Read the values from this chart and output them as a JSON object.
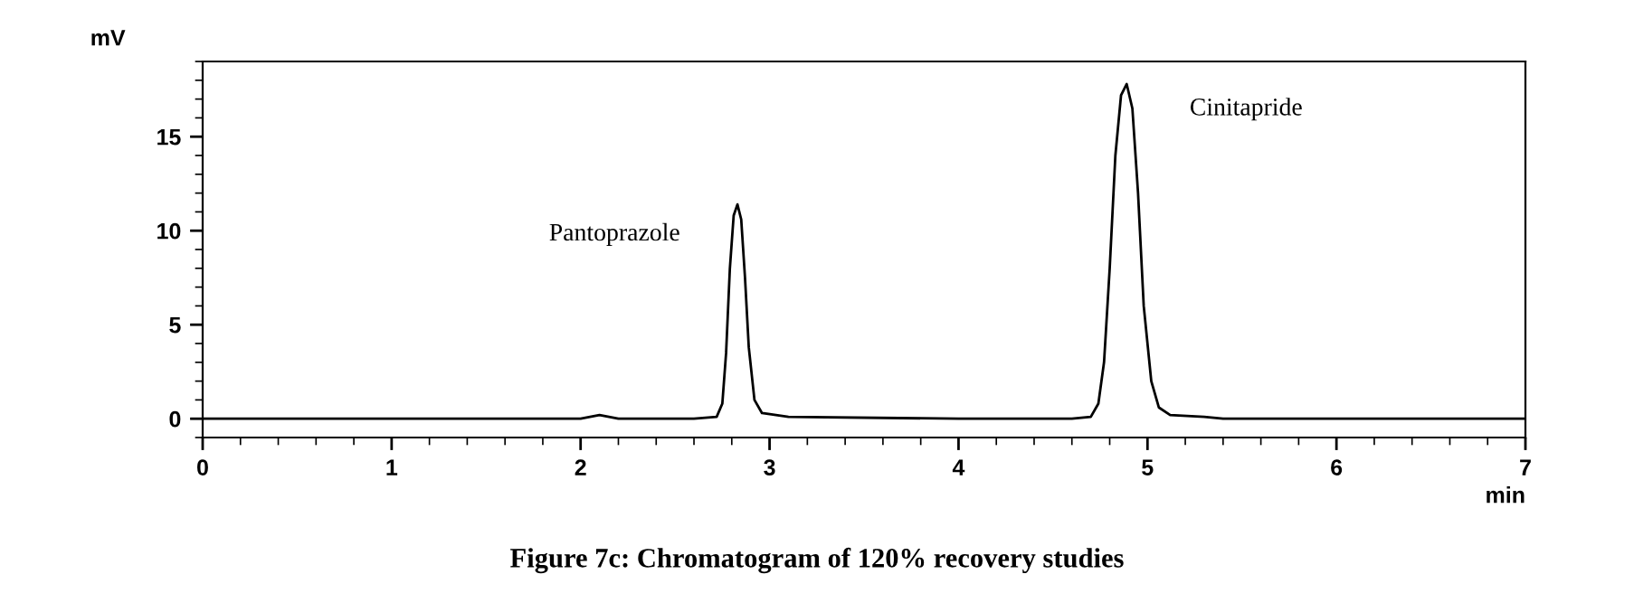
{
  "chart_data": {
    "type": "line",
    "title": "Figure 7c: Chromatogram of 120% recovery studies",
    "xlabel": "min",
    "ylabel": "mV",
    "x": [
      0,
      1.0,
      2.0,
      2.05,
      2.1,
      2.15,
      2.2,
      2.6,
      2.72,
      2.75,
      2.77,
      2.79,
      2.81,
      2.83,
      2.85,
      2.87,
      2.89,
      2.92,
      2.96,
      3.1,
      4.0,
      4.6,
      4.7,
      4.74,
      4.77,
      4.8,
      4.83,
      4.86,
      4.89,
      4.92,
      4.95,
      4.98,
      5.02,
      5.06,
      5.12,
      5.3,
      5.4,
      6.0,
      7.0
    ],
    "series": [
      {
        "color": "#000000",
        "values": [
          0,
          0,
          0,
          0.1,
          0.2,
          0.1,
          0,
          0,
          0.1,
          0.8,
          3.5,
          8.0,
          10.8,
          11.4,
          10.6,
          7.5,
          3.8,
          1.0,
          0.3,
          0.1,
          0,
          0,
          0.1,
          0.8,
          3.0,
          8.0,
          14.0,
          17.2,
          17.8,
          16.5,
          12.0,
          6.0,
          2.0,
          0.6,
          0.2,
          0.1,
          0,
          0,
          0
        ]
      }
    ],
    "xlim": [
      0,
      7
    ],
    "xticks": [
      0,
      1,
      2,
      3,
      4,
      5,
      6,
      7
    ],
    "ylim": [
      -1,
      19
    ],
    "yticks": [
      0,
      5,
      10,
      15
    ],
    "grid": false,
    "legend": false,
    "marker": "none",
    "line_style": "solid",
    "annotations": [
      {
        "text": "Pantoprazole",
        "x": 2.83,
        "y": 11.4
      },
      {
        "text": "Cinitapride",
        "x": 4.89,
        "y": 17.8
      }
    ]
  }
}
